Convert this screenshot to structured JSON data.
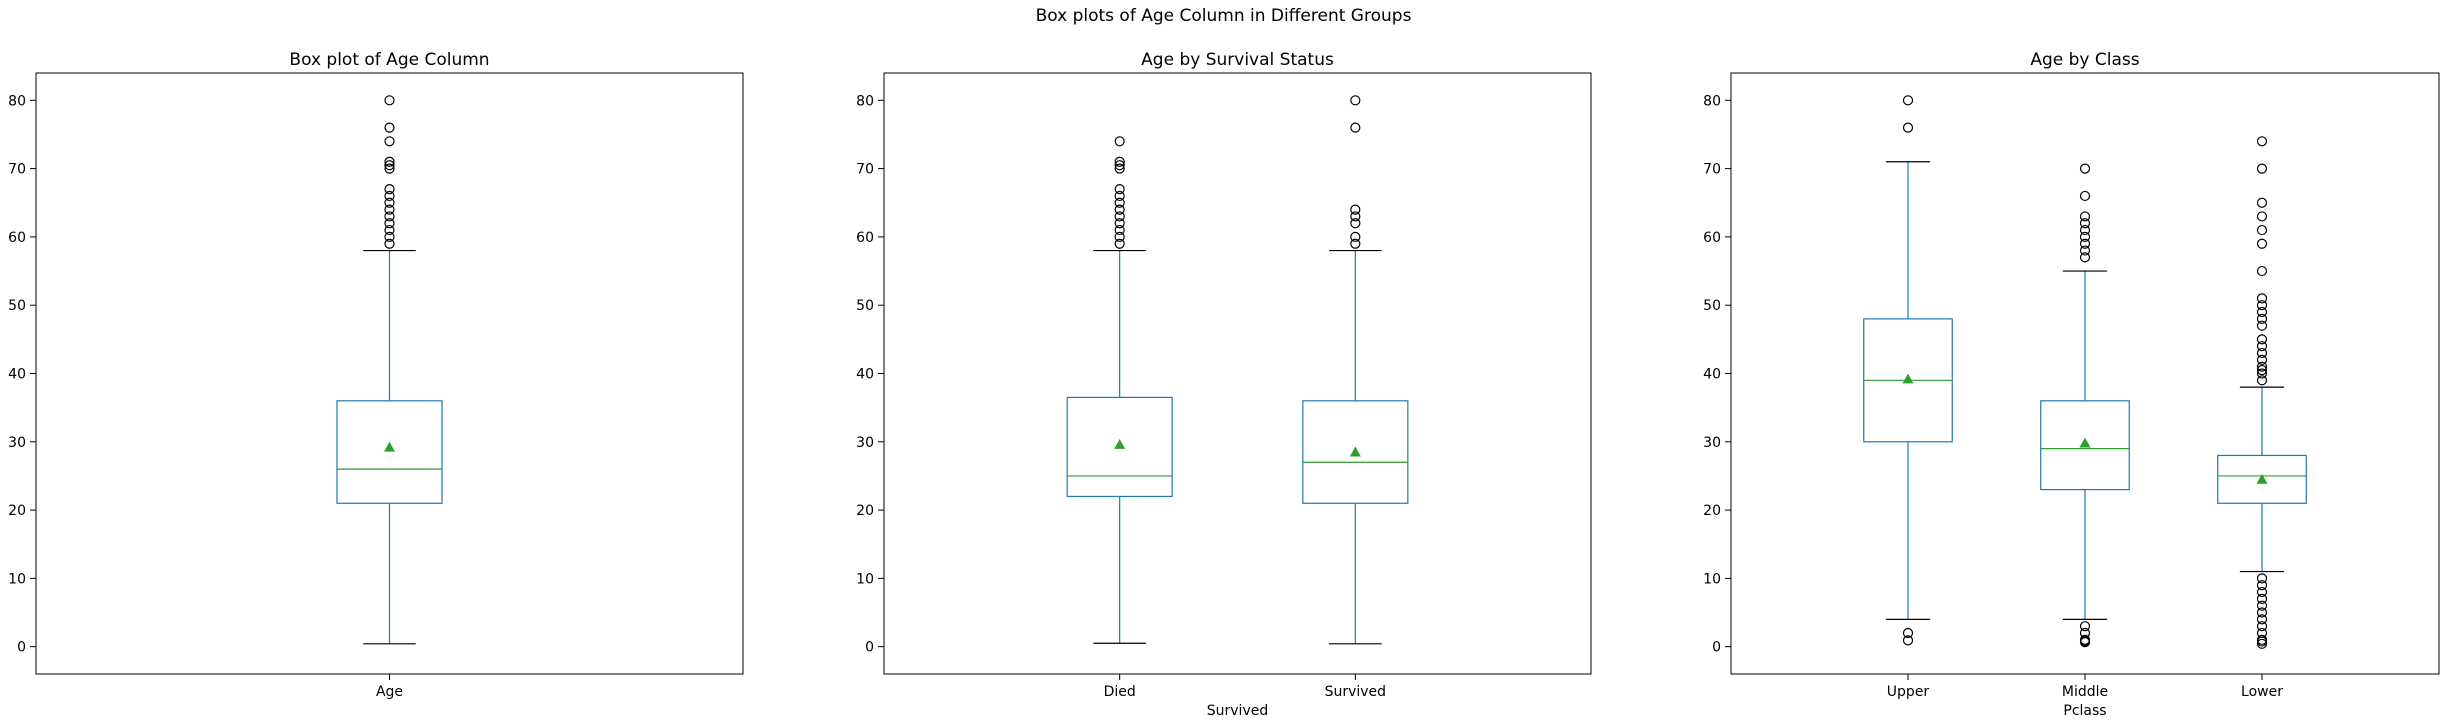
{
  "figure": {
    "suptitle": "Box plots of Age Column in Different Groups"
  },
  "colors": {
    "box": "#1f77b4",
    "median": "#2ca02c",
    "mean": "#2ca02c",
    "whisker_cap": "#000000",
    "flier": "#000000"
  },
  "chart_data": [
    {
      "type": "box",
      "title": "Box plot of Age Column",
      "xlabel": "",
      "ylabel": "",
      "ylim": [
        -4,
        84
      ],
      "yticks": [
        0,
        10,
        20,
        30,
        40,
        50,
        60,
        70,
        80
      ],
      "grid": false,
      "categories": [
        "Age"
      ],
      "boxes": [
        {
          "whislo": 0.42,
          "q1": 21,
          "med": 26,
          "q3": 36,
          "whishi": 58,
          "mean": 29.2,
          "fliers": [
            59,
            60,
            61,
            62,
            63,
            64,
            65,
            66,
            67,
            70,
            70.5,
            71,
            74,
            76,
            80
          ]
        }
      ]
    },
    {
      "type": "box",
      "title": "Age by Survival Status",
      "xlabel": "Survived",
      "ylabel": "",
      "ylim": [
        -4,
        84
      ],
      "yticks": [
        0,
        10,
        20,
        30,
        40,
        50,
        60,
        70,
        80
      ],
      "grid": false,
      "categories": [
        "Died",
        "Survived"
      ],
      "boxes": [
        {
          "whislo": 0.5,
          "q1": 22,
          "med": 25,
          "q3": 36.5,
          "whishi": 58,
          "mean": 29.6,
          "fliers": [
            59,
            60,
            61,
            62,
            63,
            64,
            65,
            66,
            67,
            70,
            70.5,
            71,
            74
          ]
        },
        {
          "whislo": 0.42,
          "q1": 21,
          "med": 27,
          "q3": 36,
          "whishi": 58,
          "mean": 28.5,
          "fliers": [
            59,
            60,
            62,
            63,
            64,
            76,
            80
          ]
        }
      ]
    },
    {
      "type": "box",
      "title": "Age by Class",
      "xlabel": "Pclass",
      "ylabel": "",
      "ylim": [
        -4,
        84
      ],
      "yticks": [
        0,
        10,
        20,
        30,
        40,
        50,
        60,
        70,
        80
      ],
      "grid": false,
      "categories": [
        "Upper",
        "Middle",
        "Lower"
      ],
      "boxes": [
        {
          "whislo": 4,
          "q1": 30,
          "med": 39,
          "q3": 48,
          "whishi": 71,
          "mean": 39.2,
          "fliers": [
            0.92,
            2,
            76,
            80
          ]
        },
        {
          "whislo": 4,
          "q1": 23,
          "med": 29,
          "q3": 36,
          "whishi": 55,
          "mean": 29.8,
          "fliers": [
            0.67,
            0.83,
            1,
            2,
            3,
            57,
            58,
            59,
            60,
            61,
            62,
            63,
            66,
            70
          ]
        },
        {
          "whislo": 11,
          "q1": 21,
          "med": 25,
          "q3": 28,
          "whishi": 38,
          "mean": 24.5,
          "fliers": [
            0.42,
            0.75,
            1,
            2,
            3,
            4,
            5,
            6,
            7,
            8,
            9,
            10,
            39,
            40,
            40.5,
            41,
            42,
            43,
            44,
            45,
            47,
            48,
            49,
            50,
            51,
            55,
            59,
            61,
            63,
            65,
            70,
            74
          ]
        }
      ]
    }
  ]
}
